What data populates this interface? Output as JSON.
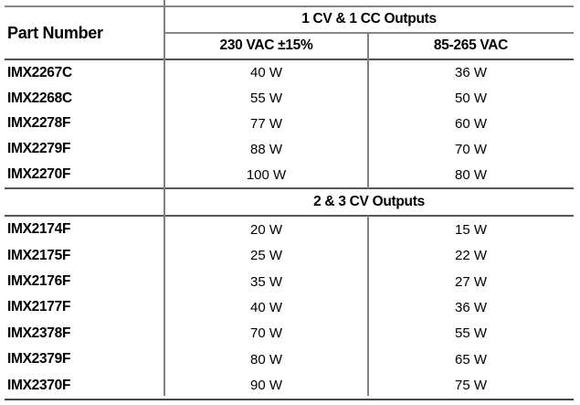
{
  "table": {
    "part_number_header": "Part Number",
    "section1": {
      "title": "1 CV & 1 CC Outputs",
      "col_230": "230 VAC ±15%",
      "col_85_265": "85-265 VAC",
      "rows": [
        {
          "part": "IMX2267C",
          "v230": "40 W",
          "v85": "36 W"
        },
        {
          "part": "IMX2268C",
          "v230": "55 W",
          "v85": "50 W"
        },
        {
          "part": "IMX2278F",
          "v230": "77 W",
          "v85": "60 W"
        },
        {
          "part": "IMX2279F",
          "v230": "88 W",
          "v85": "70 W"
        },
        {
          "part": "IMX2270F",
          "v230": "100 W",
          "v85": "80 W"
        }
      ]
    },
    "section2": {
      "title": "2 & 3 CV Outputs",
      "rows": [
        {
          "part": "IMX2174F",
          "v230": "20 W",
          "v85": "15 W"
        },
        {
          "part": "IMX2175F",
          "v230": "25 W",
          "v85": "22 W"
        },
        {
          "part": "IMX2176F",
          "v230": "35 W",
          "v85": "27 W"
        },
        {
          "part": "IMX2177F",
          "v230": "40 W",
          "v85": "36 W"
        },
        {
          "part": "IMX2378F",
          "v230": "70 W",
          "v85": "55 W"
        },
        {
          "part": "IMX2379F",
          "v230": "80 W",
          "v85": "65 W"
        },
        {
          "part": "IMX2370F",
          "v230": "90 W",
          "v85": "75 W"
        }
      ]
    },
    "colors": {
      "text": "#000000",
      "rule_light": "#868686",
      "rule_dark": "#4f4f4f",
      "background": "#ffffff"
    }
  }
}
